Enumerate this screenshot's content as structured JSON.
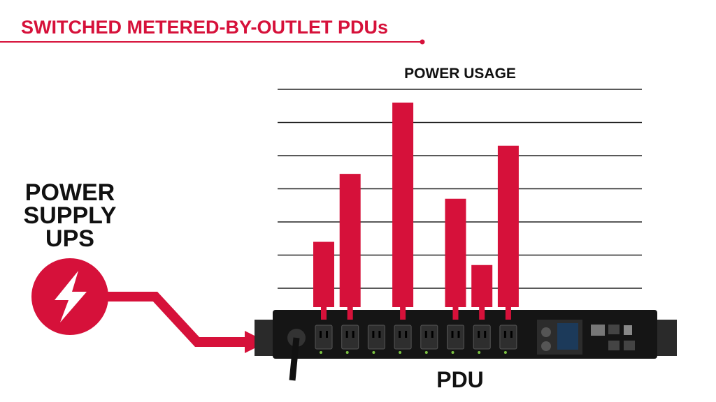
{
  "header": {
    "title": "SWITCHED METERED-BY-OUTLET PDUs"
  },
  "labels": {
    "source": [
      "POWER",
      "SUPPLY",
      "UPS"
    ],
    "device": "PDU"
  },
  "chart_data": {
    "type": "bar",
    "title": "POWER USAGE",
    "categories": [
      null,
      null,
      null,
      null,
      null,
      null,
      null,
      null
    ],
    "values": [
      1.4,
      3.45,
      null,
      5.6,
      null,
      2.7,
      0.7,
      4.3
    ],
    "color": "#d6113a",
    "ylim": [
      0,
      6
    ]
  }
}
